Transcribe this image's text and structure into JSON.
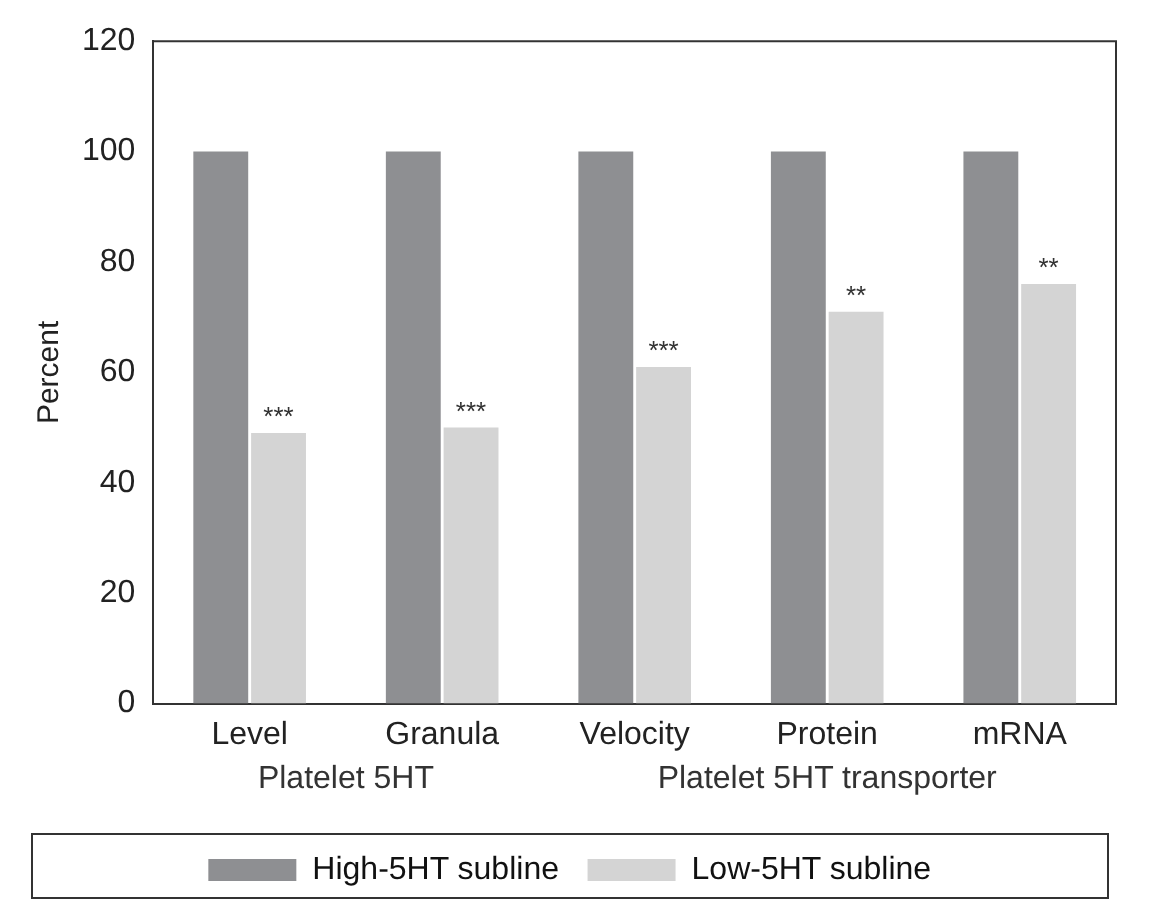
{
  "chart_data": {
    "type": "bar",
    "ylabel": "Percent",
    "categories": [
      "Level",
      "Granula",
      "Velocity",
      "Protein",
      "mRNA"
    ],
    "series": [
      {
        "name": "High-5HT subline",
        "color": "#8e8f92",
        "values": [
          100,
          100,
          100,
          100,
          100
        ]
      },
      {
        "name": "Low-5HT subline",
        "color": "#d4d4d4",
        "values": [
          49,
          50,
          61,
          71,
          76
        ]
      }
    ],
    "ylim": [
      0,
      120
    ],
    "yticks": [
      0,
      20,
      40,
      60,
      80,
      100,
      120
    ],
    "grid": false,
    "legend": "bottom",
    "annotations": [
      {
        "text": "***",
        "x": "Level",
        "y": 49
      },
      {
        "text": "***",
        "x": "Granula",
        "y": 50
      },
      {
        "text": "***",
        "x": "Velocity",
        "y": 61
      },
      {
        "text": "**",
        "x": "Protein",
        "y": 71
      },
      {
        "text": "**",
        "x": "mRNA",
        "y": 76
      },
      "Platelet 5HT",
      "Platelet 5HT transporter"
    ]
  }
}
